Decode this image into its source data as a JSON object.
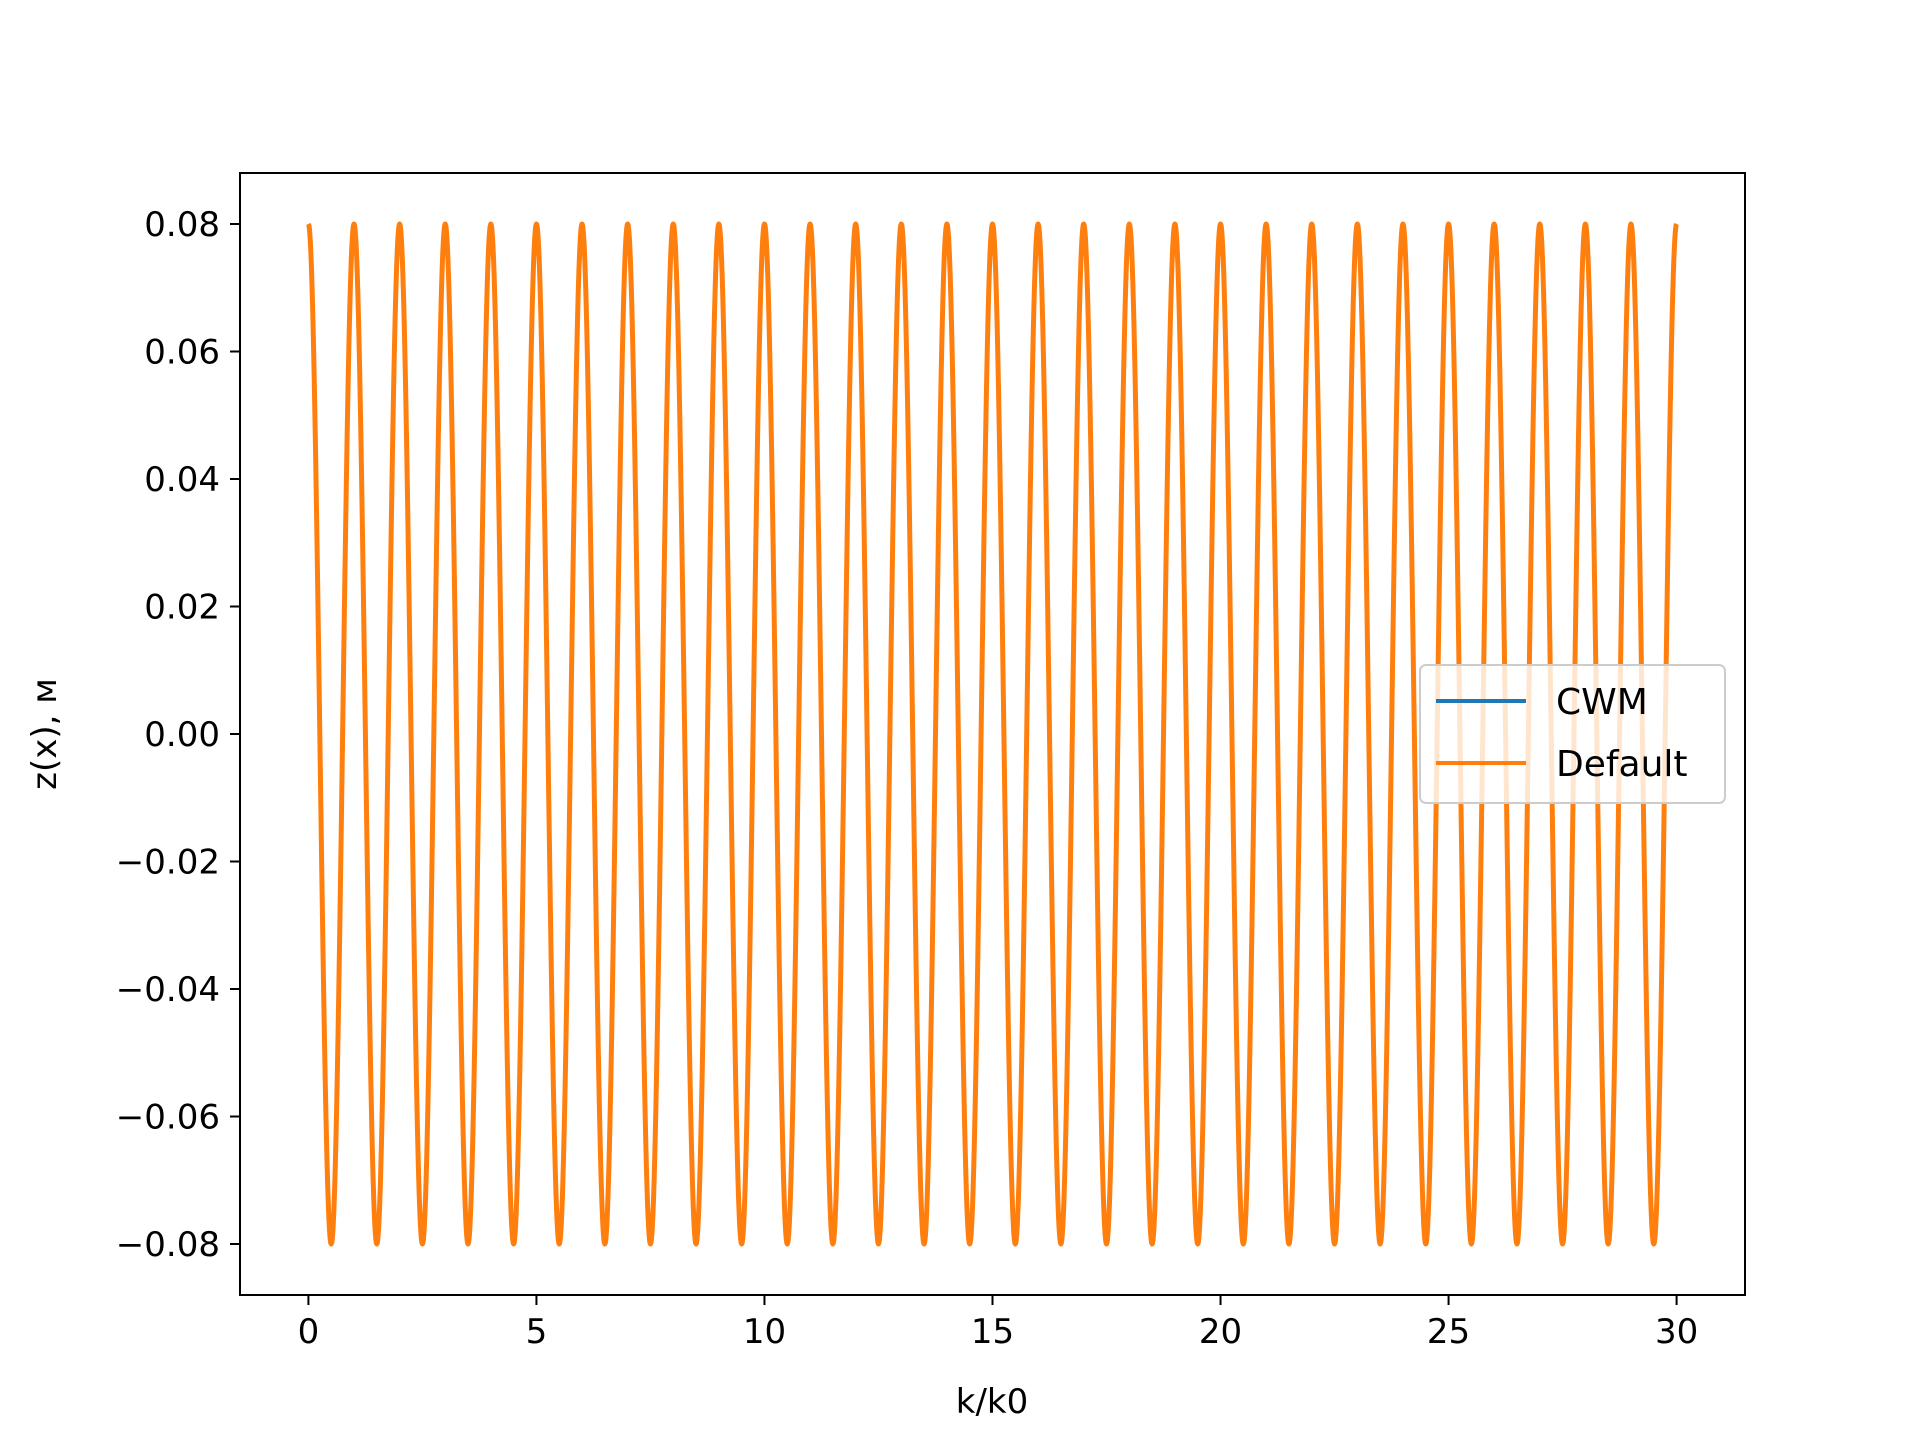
{
  "chart_data": {
    "type": "line",
    "title": "",
    "xlabel": "k/k0",
    "ylabel": "z(x), м",
    "xlim": [
      -1.5,
      31.5
    ],
    "ylim": [
      -0.088,
      0.088
    ],
    "x_ticks": [
      0,
      5,
      10,
      15,
      20,
      25,
      30
    ],
    "x_tick_labels": [
      "0",
      "5",
      "10",
      "15",
      "20",
      "25",
      "30"
    ],
    "y_ticks": [
      0.08,
      0.06,
      0.04,
      0.02,
      0.0,
      -0.02,
      -0.04,
      -0.06,
      -0.08
    ],
    "y_tick_labels": [
      "0.08",
      "0.06",
      "0.04",
      "0.02",
      "0.00",
      "−0.02",
      "−0.04",
      "−0.06",
      "−0.08"
    ],
    "grid": false,
    "legend_position": "center-right",
    "series": [
      {
        "name": "CWM",
        "color": "#1f77b4",
        "x_range": [
          0,
          30
        ],
        "amplitude": 0.08,
        "period": 1.0,
        "form": "0.08*cos(2*pi*x)"
      },
      {
        "name": "Default",
        "color": "#ff7f0e",
        "x_range": [
          0,
          30
        ],
        "amplitude": 0.08,
        "period": 1.0,
        "form": "0.08*cos(2*pi*x)"
      }
    ]
  }
}
